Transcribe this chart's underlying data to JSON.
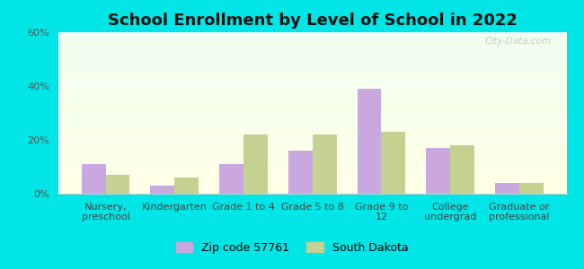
{
  "title": "School Enrollment by Level of School in 2022",
  "categories": [
    "Nursery,\npreschool",
    "Kindergarten",
    "Grade 1 to 4",
    "Grade 5 to 8",
    "Grade 9 to\n12",
    "College\nundergrad",
    "Graduate or\nprofessional"
  ],
  "zip_values": [
    11,
    3,
    11,
    16,
    39,
    17,
    4
  ],
  "sd_values": [
    7,
    6,
    22,
    22,
    23,
    18,
    4
  ],
  "zip_color": "#c9a8e0",
  "sd_color": "#c5d191",
  "ylim": [
    0,
    60
  ],
  "yticks": [
    0,
    20,
    40,
    60
  ],
  "ytick_labels": [
    "0%",
    "20%",
    "40%",
    "60%"
  ],
  "legend_zip": "Zip code 57761",
  "legend_sd": "South Dakota",
  "background_color": "#00e5e5",
  "bar_width": 0.35,
  "watermark": "City-Data.com",
  "title_fontsize": 13,
  "tick_fontsize": 8,
  "legend_fontsize": 9
}
